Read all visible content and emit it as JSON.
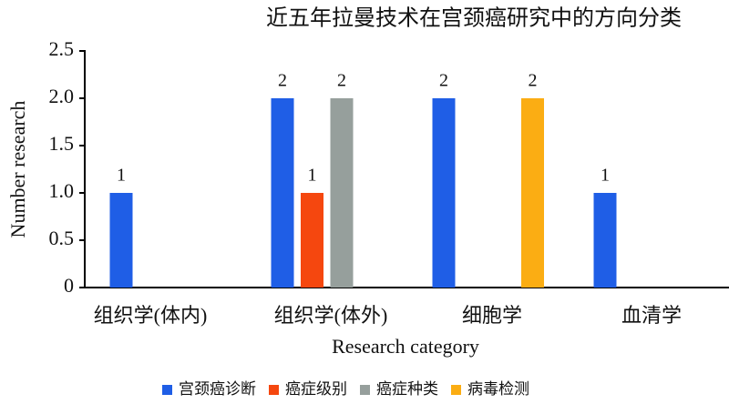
{
  "chart_data": {
    "type": "bar",
    "title": "近五年拉曼技术在宫颈癌研究中的方向分类",
    "x_label": "Research category",
    "y_label": "Number research",
    "categories": [
      "组织学(体内)",
      "组织学(体外)",
      "细胞学",
      "血清学"
    ],
    "series": [
      {
        "name": "宫颈癌诊断",
        "color": "#1f5ee6",
        "values": [
          1,
          2,
          2,
          1
        ]
      },
      {
        "name": "癌症级别",
        "color": "#f5470f",
        "values": [
          null,
          1,
          null,
          null
        ]
      },
      {
        "name": "癌症种类",
        "color": "#969f9c",
        "values": [
          null,
          2,
          null,
          null
        ]
      },
      {
        "name": "病毒检测",
        "color": "#fbad13",
        "values": [
          null,
          null,
          2,
          null
        ]
      }
    ],
    "ylim": [
      0,
      2.5
    ],
    "yticks": [
      0,
      0.5,
      {
        "value": 1,
        "label": "1.0"
      },
      1.5,
      {
        "value": 2,
        "label": "2.0"
      },
      2.5
    ],
    "legend": "bottom"
  }
}
